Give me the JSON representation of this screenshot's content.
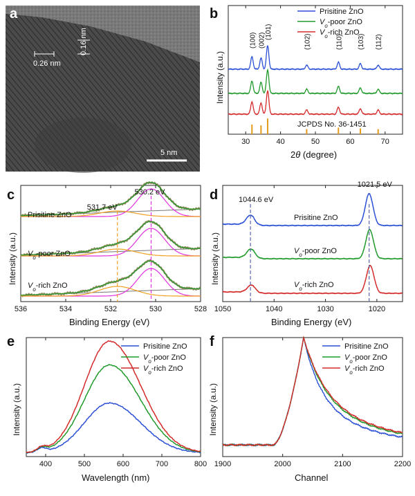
{
  "colors": {
    "pristine": "#2a4fd6",
    "poor": "#1f9a2a",
    "rich": "#d42a2a",
    "ref": "#e39a18",
    "orange": "#f0a020",
    "magenta": "#e030e0",
    "gray": "#777777"
  },
  "chart_data": [
    {
      "panel": "a",
      "type": "image",
      "annotations": [
        "0.26 nm",
        "0.16 nm"
      ],
      "scale_bar": "5 nm"
    },
    {
      "panel": "b",
      "type": "line",
      "xlabel_pre": "2",
      "xlabel_theta": "θ",
      "xlabel_post": " (degree)",
      "ylabel": "Intensity (a.u.)",
      "xlim": [
        25,
        75
      ],
      "xticks": [
        "30",
        "40",
        "50",
        "60",
        "70"
      ],
      "legend": [
        {
          "pre": "Prisitine ZnO",
          "sub": "",
          "post": ""
        },
        {
          "pre": "V",
          "sub": "o",
          "post": "-poor ZnO"
        },
        {
          "pre": "V",
          "sub": "o",
          "post": "-rich ZnO"
        }
      ],
      "peaks": [
        {
          "x": 31.8,
          "label": "(100)",
          "h": 0.45
        },
        {
          "x": 34.4,
          "label": "(002)",
          "h": 0.4
        },
        {
          "x": 36.3,
          "label": "(101)",
          "h": 0.85
        },
        {
          "x": 47.5,
          "label": "(102)",
          "h": 0.15
        },
        {
          "x": 56.6,
          "label": "(110)",
          "h": 0.25
        },
        {
          "x": 62.9,
          "label": "(103)",
          "h": 0.2
        },
        {
          "x": 68.0,
          "label": "(112)",
          "h": 0.15
        }
      ],
      "reference_label": "JCPDS No. 36-1451"
    },
    {
      "panel": "c",
      "type": "line",
      "xlabel": "Binding Energy (eV)",
      "ylabel": "Intensity (a.u.)",
      "xlim": [
        536,
        528
      ],
      "xticks": [
        "536",
        "534",
        "532",
        "530",
        "528"
      ],
      "marker_lines": [
        {
          "x": 531.7,
          "label": "531.7 eV"
        },
        {
          "x": 530.2,
          "label": "530.2 eV"
        }
      ],
      "curve_labels": [
        {
          "pre": "Prisitine ZnO",
          "sub": "",
          "post": ""
        },
        {
          "pre": "V",
          "sub": "o",
          "post": "-poor ZnO"
        },
        {
          "pre": "V",
          "sub": "o",
          "post": "-rich ZnO"
        }
      ]
    },
    {
      "panel": "d",
      "type": "line",
      "xlabel": "Binding Energy (eV)",
      "ylabel": "Intensity (a.u.)",
      "xlim": [
        1050,
        1015
      ],
      "xticks": [
        "1050",
        "1040",
        "1030",
        "1020"
      ],
      "marker_lines": [
        {
          "x": 1044.6,
          "label": "1044.6 eV"
        },
        {
          "x": 1021.5,
          "label": "1021.5 eV"
        }
      ],
      "curve_labels": [
        {
          "pre": "Prisitine ZnO",
          "sub": "",
          "post": ""
        },
        {
          "pre": "V",
          "sub": "o",
          "post": "-poor ZnO"
        },
        {
          "pre": "V",
          "sub": "o",
          "post": "-rich ZnO"
        }
      ]
    },
    {
      "panel": "e",
      "type": "line",
      "xlabel": "Wavelength (nm)",
      "ylabel": "Intensity (a.u.)",
      "xlim": [
        350,
        800
      ],
      "xticks": [
        "400",
        "500",
        "600",
        "700",
        "800"
      ],
      "legend": [
        {
          "pre": "Prisitine ZnO",
          "sub": "",
          "post": ""
        },
        {
          "pre": "V",
          "sub": "o",
          "post": "-poor ZnO"
        },
        {
          "pre": "V",
          "sub": "o",
          "post": "-rich ZnO"
        }
      ],
      "series_peak_wavelength": 565,
      "series_peak_relative": [
        0.42,
        0.74,
        0.94
      ]
    },
    {
      "panel": "f",
      "type": "line",
      "xlabel": "Channel",
      "ylabel": "Intensity (a.u.)",
      "xlim": [
        1900,
        2200
      ],
      "xticks": [
        "1900",
        "2000",
        "2100",
        "2200"
      ],
      "legend": [
        {
          "pre": "Prisitine ZnO",
          "sub": "",
          "post": ""
        },
        {
          "pre": "V",
          "sub": "o",
          "post": "-poor ZnO"
        },
        {
          "pre": "V",
          "sub": "o",
          "post": "-rich ZnO"
        }
      ],
      "rise_channel": 1985,
      "peak_channel": 2035
    }
  ]
}
